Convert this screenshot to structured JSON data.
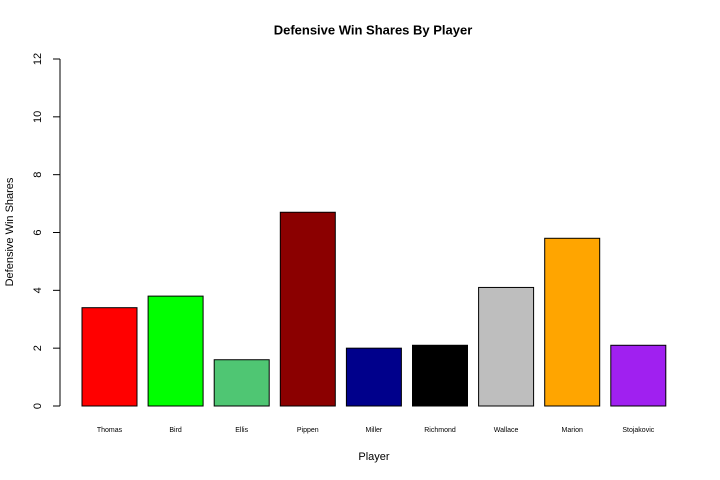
{
  "chart_data": {
    "type": "bar",
    "title": "Defensive Win Shares By Player",
    "x_label": "Player",
    "y_label": "Defensive Win Shares",
    "categories": [
      "Thomas",
      "Bird",
      "Ellis",
      "Pippen",
      "Miller",
      "Richmond",
      "Wallace",
      "Marion",
      "Stojakovic"
    ],
    "values": [
      3.4,
      3.8,
      1.6,
      6.7,
      2.0,
      2.1,
      4.1,
      5.8,
      2.1
    ],
    "colors": [
      "#ff0000",
      "#00ff00",
      "#4fc673",
      "#8b0000",
      "#00008b",
      "#000000",
      "#bebebe",
      "#ffa500",
      "#a020f0"
    ],
    "ylim": [
      0,
      12
    ],
    "yticks": [
      0,
      2,
      4,
      6,
      8,
      10,
      12
    ],
    "grid": false
  }
}
